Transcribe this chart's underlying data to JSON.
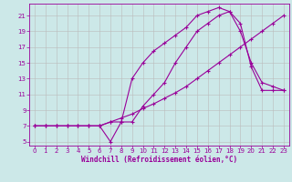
{
  "xlabel": "Windchill (Refroidissement éolien,°C)",
  "bg_color": "#cce8e8",
  "line_color": "#990099",
  "grid_color": "#bbbbbb",
  "xlim": [
    -0.5,
    23.5
  ],
  "ylim": [
    4.5,
    22.5
  ],
  "xticks": [
    0,
    1,
    2,
    3,
    4,
    5,
    6,
    7,
    8,
    9,
    10,
    11,
    12,
    13,
    14,
    15,
    16,
    17,
    18,
    19,
    20,
    21,
    22,
    23
  ],
  "yticks": [
    5,
    7,
    9,
    11,
    13,
    15,
    17,
    19,
    21
  ],
  "line1_x": [
    0,
    1,
    2,
    3,
    4,
    5,
    6,
    7,
    8,
    9,
    10,
    11,
    12,
    13,
    14,
    15,
    16,
    17,
    18,
    19,
    20,
    21,
    22,
    23
  ],
  "line1_y": [
    7,
    7,
    7,
    7,
    7,
    7,
    7,
    7.5,
    8.0,
    8.5,
    9.2,
    9.8,
    10.5,
    11.2,
    12.0,
    13.0,
    14.0,
    15.0,
    16.0,
    17.0,
    18.0,
    19.0,
    20.0,
    21.0
  ],
  "line2_x": [
    0,
    1,
    2,
    3,
    4,
    5,
    6,
    7,
    8,
    9,
    10,
    11,
    12,
    13,
    14,
    15,
    16,
    17,
    18,
    19,
    20,
    21,
    22,
    23
  ],
  "line2_y": [
    7,
    7,
    7,
    7,
    7,
    7,
    7,
    5.0,
    7.5,
    13.0,
    15.0,
    16.5,
    17.5,
    18.5,
    19.5,
    21.0,
    21.5,
    22.0,
    21.5,
    20.0,
    14.5,
    11.5,
    11.5,
    11.5
  ],
  "line3_x": [
    0,
    1,
    2,
    3,
    4,
    5,
    6,
    7,
    8,
    9,
    10,
    11,
    12,
    13,
    14,
    15,
    16,
    17,
    18,
    19,
    20,
    21,
    22,
    23
  ],
  "line3_y": [
    7,
    7,
    7,
    7,
    7,
    7,
    7,
    7.5,
    7.5,
    7.5,
    9.5,
    11.0,
    12.5,
    15.0,
    17.0,
    19.0,
    20.0,
    21.0,
    21.5,
    19.0,
    15.0,
    12.5,
    12.0,
    11.5
  ],
  "xlabel_fontsize": 5.5,
  "tick_fontsize": 5.0,
  "line_width": 0.8,
  "marker_size": 3
}
